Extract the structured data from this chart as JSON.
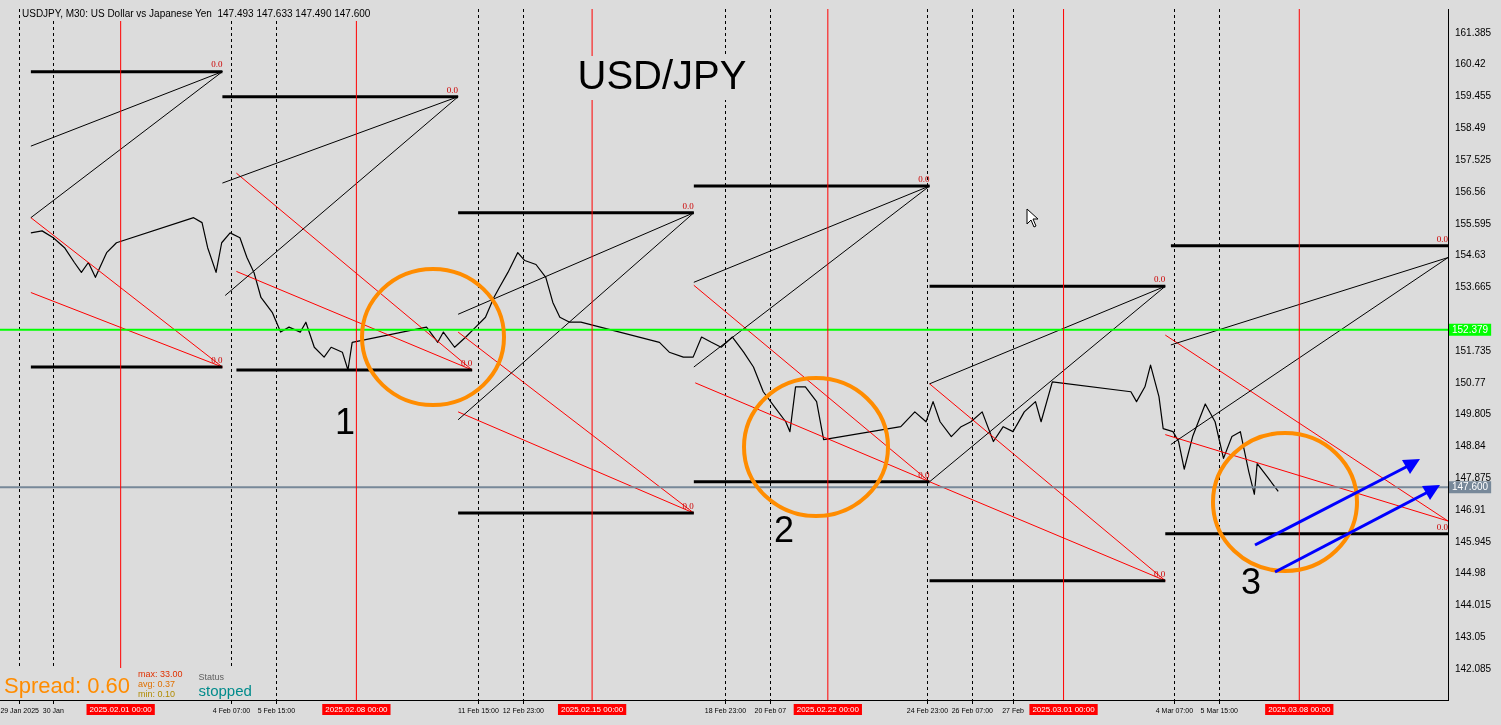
{
  "chart_data": {
    "type": "line",
    "title": "USD/JPY",
    "subtitle": "USDJPY, M30: US Dollar vs Japanese Yen  147.493 147.633 147.490 147.600",
    "x": [
      "2025-01-29T08:00",
      "2025-01-29T16:00",
      "2025-01-30T00:00",
      "2025-01-30T08:00",
      "2025-01-30T15:00",
      "2025-01-30T20:00",
      "2025-01-31T01:00",
      "2025-01-31T06:00",
      "2025-01-31T14:00",
      "2025-01-31T21:00",
      "2025-02-03T04:00",
      "2025-02-03T10:00",
      "2025-02-03T14:00",
      "2025-02-03T20:00",
      "2025-02-04T00:00",
      "2025-02-04T06:00",
      "2025-02-04T13:00",
      "2025-02-04T18:00",
      "2025-02-04T23:00",
      "2025-02-05T04:00",
      "2025-02-05T12:00",
      "2025-02-05T18:00",
      "2025-02-06T00:00",
      "2025-02-06T08:00",
      "2025-02-06T12:00",
      "2025-02-06T18:00",
      "2025-02-07T01:00",
      "2025-02-07T06:00",
      "2025-02-07T14:00",
      "2025-02-07T18:00",
      "2025-02-07T21:00",
      "2025-02-10T02:00",
      "2025-02-10T10:00",
      "2025-02-10T14:00",
      "2025-02-10T22:00",
      "2025-02-11T06:00",
      "2025-02-11T13:00",
      "2025-02-11T20:00",
      "2025-02-12T02:00",
      "2025-02-12T06:00",
      "2025-02-12T12:00",
      "2025-02-12T19:00",
      "2025-02-13T00:00",
      "2025-02-13T08:00",
      "2025-02-13T15:00",
      "2025-02-13T20:00",
      "2025-02-14T01:00",
      "2025-02-14T08:00",
      "2025-02-14T16:00",
      "2025-02-17T00:00",
      "2025-02-17T07:00",
      "2025-02-17T17:00",
      "2025-02-18T00:00",
      "2025-02-18T06:00",
      "2025-02-18T13:00",
      "2025-02-18T20:00",
      "2025-02-19T04:00",
      "2025-02-19T12:00",
      "2025-02-19T19:00",
      "2025-02-20T02:00",
      "2025-02-20T10:00",
      "2025-02-20T18:00",
      "2025-02-20T21:00",
      "2025-02-21T01:00",
      "2025-02-21T08:00",
      "2025-02-21T16:00",
      "2025-02-21T21:00",
      "2025-02-24T04:00",
      "2025-02-24T14:00",
      "2025-02-24T22:00",
      "2025-02-25T03:00",
      "2025-02-25T08:00",
      "2025-02-25T16:00",
      "2025-02-25T23:00",
      "2025-02-26T06:00",
      "2025-02-26T14:00",
      "2025-02-26T22:00",
      "2025-02-27T05:00",
      "2025-02-27T12:00",
      "2025-02-27T20:00",
      "2025-02-28T04:00",
      "2025-02-28T08:00",
      "2025-02-28T16:00",
      "2025-03-03T00:00",
      "2025-03-03T04:00",
      "2025-03-03T10:00",
      "2025-03-03T14:00",
      "2025-03-03T20:00",
      "2025-03-03T23:00",
      "2025-03-04T06:00",
      "2025-03-04T10:00",
      "2025-03-04T14:00",
      "2025-03-04T20:00",
      "2025-03-05T05:00",
      "2025-03-05T12:00",
      "2025-03-05T18:00",
      "2025-03-06T00:00",
      "2025-03-06T06:00",
      "2025-03-06T12:00",
      "2025-03-06T16:00",
      "2025-03-06T18:00",
      "2025-03-07T01:00",
      "2025-03-07T09:00"
    ],
    "values": [
      155.32,
      155.38,
      155.17,
      154.87,
      154.42,
      154.12,
      154.42,
      153.97,
      154.72,
      155.02,
      155.78,
      155.63,
      154.87,
      154.12,
      155.02,
      155.32,
      155.17,
      154.57,
      154.12,
      153.36,
      152.91,
      152.31,
      152.46,
      152.31,
      152.61,
      151.85,
      151.55,
      151.85,
      151.7,
      151.16,
      152.0,
      152.46,
      152.0,
      152.31,
      151.85,
      152.16,
      152.46,
      152.76,
      153.36,
      153.67,
      154.12,
      154.72,
      154.48,
      154.36,
      153.97,
      153.21,
      152.76,
      152.61,
      152.61,
      152.0,
      151.7,
      151.55,
      151.55,
      152.16,
      152.0,
      151.85,
      152.16,
      151.7,
      151.25,
      150.5,
      150.04,
      149.59,
      149.29,
      150.65,
      150.65,
      150.2,
      149.05,
      149.44,
      149.89,
      149.59,
      150.2,
      149.59,
      149.14,
      149.44,
      149.59,
      149.89,
      148.99,
      149.44,
      149.29,
      149.89,
      150.2,
      149.59,
      150.8,
      150.5,
      150.2,
      150.65,
      151.31,
      150.35,
      149.38,
      149.29,
      148.99,
      148.15,
      149.14,
      150.13,
      149.59,
      148.48,
      149.14,
      149.29,
      148.08,
      147.39,
      148.32,
      147.93,
      147.48
    ],
    "color": "#000000",
    "marker": "none",
    "series": [
      {
        "color": "#000000",
        "x": [
          "2025-01-29T08:00",
          "2025-02-04T00:30"
        ],
        "values": [
          160.21,
          160.21
        ]
      },
      {
        "color": "#000000",
        "x": [
          "2025-02-04T00:30",
          "2025-02-11T00:30"
        ],
        "values": [
          159.45,
          159.45
        ]
      },
      {
        "color": "#000000",
        "x": [
          "2025-01-29T08:00",
          "2025-02-04T00:30"
        ],
        "values": [
          151.25,
          151.25
        ]
      },
      {
        "color": "#000000",
        "x": [
          "2025-02-04T10:30",
          "2025-02-11T10:30"
        ],
        "values": [
          151.16,
          151.16
        ]
      },
      {
        "color": "#000000",
        "x": [
          "2025-02-11T00:30",
          "2025-02-18T00:30"
        ],
        "values": [
          155.93,
          155.93
        ]
      },
      {
        "color": "#000000",
        "x": [
          "2025-02-11T00:30",
          "2025-02-18T00:30"
        ],
        "values": [
          146.82,
          146.82
        ]
      },
      {
        "color": "#000000",
        "x": [
          "2025-02-18T00:30",
          "2025-02-25T00:30"
        ],
        "values": [
          156.74,
          156.74
        ]
      },
      {
        "color": "#000000",
        "x": [
          "2025-02-18T00:30",
          "2025-02-25T00:30"
        ],
        "values": [
          147.77,
          147.77
        ]
      },
      {
        "color": "#000000",
        "x": [
          "2025-02-25T00:30",
          "2025-03-04T00:30"
        ],
        "values": [
          153.7,
          153.7
        ]
      },
      {
        "color": "#000000",
        "x": [
          "2025-02-25T00:30",
          "2025-03-04T00:30"
        ],
        "values": [
          144.77,
          144.77
        ]
      },
      {
        "color": "#000000",
        "x": [
          "2025-03-04T04:30",
          "2025-03-12T10:00"
        ],
        "values": [
          154.93,
          154.93
        ]
      },
      {
        "color": "#000000",
        "x": [
          "2025-03-04T00:30",
          "2025-03-12T10:00"
        ],
        "values": [
          146.19,
          146.19
        ]
      },
      {
        "color": "#000000",
        "x": [
          "2025-01-29T08:00",
          "2025-02-04T00:30",
          "2025-01-29T08:00"
        ],
        "values": [
          157.95,
          160.21,
          155.78
        ]
      },
      {
        "color": "#ff0000",
        "x": [
          "2025-01-29T08:00",
          "2025-02-04T00:30",
          "2025-01-29T08:00"
        ],
        "values": [
          155.78,
          151.25,
          153.51
        ]
      },
      {
        "color": "#000000",
        "x": [
          "2025-02-04T00:30",
          "2025-02-11T00:30",
          "2025-02-04T02:30"
        ],
        "values": [
          156.83,
          159.45,
          153.42
        ]
      },
      {
        "color": "#ff0000",
        "x": [
          "2025-02-04T10:30",
          "2025-02-11T10:30",
          "2025-02-04T10:30"
        ],
        "values": [
          157.13,
          151.16,
          154.15
        ]
      },
      {
        "color": "#000000",
        "x": [
          "2025-02-11T00:30",
          "2025-02-18T00:30",
          "2025-02-11T00:30"
        ],
        "values": [
          152.85,
          155.93,
          149.65
        ]
      },
      {
        "color": "#ff0000",
        "x": [
          "2025-02-11T00:30",
          "2025-02-18T00:30",
          "2025-02-11T00:30"
        ],
        "values": [
          152.31,
          146.82,
          149.89
        ]
      },
      {
        "color": "#000000",
        "x": [
          "2025-02-18T00:30",
          "2025-02-25T00:30",
          "2025-02-18T00:30"
        ],
        "values": [
          153.82,
          156.74,
          151.25
        ]
      },
      {
        "color": "#ff0000",
        "x": [
          "2025-02-18T00:30",
          "2025-02-25T00:30",
          "2025-02-18T01:30"
        ],
        "values": [
          153.73,
          147.77,
          150.77
        ]
      },
      {
        "color": "#000000",
        "x": [
          "2025-02-25T00:30",
          "2025-03-04T00:30",
          "2025-02-25T00:30"
        ],
        "values": [
          150.74,
          153.7,
          147.77
        ]
      },
      {
        "color": "#ff0000",
        "x": [
          "2025-02-25T00:30",
          "2025-03-04T00:30",
          "2025-02-25T00:30"
        ],
        "values": [
          150.74,
          144.77,
          147.77
        ]
      },
      {
        "color": "#000000",
        "x": [
          "2025-03-04T04:30",
          "2025-03-12T10:00",
          "2025-03-04T04:30"
        ],
        "values": [
          151.92,
          154.57,
          148.9
        ]
      },
      {
        "color": "#ff0000",
        "x": [
          "2025-03-04T00:30",
          "2025-03-12T10:00",
          "2025-03-04T00:30"
        ],
        "values": [
          152.22,
          146.58,
          149.2
        ]
      }
    ],
    "xlim": [
      "2025-01-28T10:00",
      "2025-03-12T10:00"
    ],
    "xticks": [
      {
        "value": "2025-01-29T00:00",
        "label": "29 Jan 2025"
      },
      {
        "value": "2025-01-30T00:00",
        "label": "30 Jan"
      },
      {
        "value": "2025-02-04T07:00",
        "label": "4 Feb 07:00"
      },
      {
        "value": "2025-02-05T15:00",
        "label": "5 Feb 15:00"
      },
      {
        "value": "2025-02-11T15:00",
        "label": "11 Feb 15:00"
      },
      {
        "value": "2025-02-12T23:00",
        "label": "12 Feb 23:00"
      },
      {
        "value": "2025-02-18T23:00",
        "label": "18 Feb 23:00"
      },
      {
        "value": "2025-02-20T07:00",
        "label": "20 Feb 07"
      },
      {
        "value": "2025-02-24T23:00",
        "label": "24 Feb 23:00"
      },
      {
        "value": "2025-02-26T07:00",
        "label": "26 Feb 07:00"
      },
      {
        "value": "2025-02-27T12:00",
        "label": "27 Feb"
      },
      {
        "value": "2025-03-04T07:00",
        "label": "4 Mar 07:00"
      },
      {
        "value": "2025-03-05T15:00",
        "label": "5 Mar 15:00"
      }
    ],
    "ylim": [
      141.15,
      162.11
    ],
    "yticks": [
      161.385,
      160.42,
      159.455,
      158.49,
      157.525,
      156.56,
      155.595,
      154.63,
      153.665,
      151.735,
      150.77,
      149.805,
      148.84,
      147.875,
      146.91,
      145.945,
      144.98,
      144.015,
      143.05,
      142.085
    ],
    "grid": "x",
    "ref_lines": [
      {
        "axis": "y",
        "value": 152.379,
        "label": "152.379",
        "color": "#00ff00"
      },
      {
        "axis": "y",
        "value": 147.6,
        "label": "147.600",
        "color": "#778899"
      },
      {
        "axis": "x",
        "value": "2025-02-01T00:00",
        "label": "2025.02.01 00:00",
        "color": "#ff0000"
      },
      {
        "axis": "x",
        "value": "2025-02-08T00:00",
        "label": "2025.02.08 00:00",
        "color": "#ff0000"
      },
      {
        "axis": "x",
        "value": "2025-02-15T00:00",
        "label": "2025.02.15 00:00",
        "color": "#ff0000"
      },
      {
        "axis": "x",
        "value": "2025-02-22T00:00",
        "label": "2025.02.22 00:00",
        "color": "#ff0000"
      },
      {
        "axis": "x",
        "value": "2025-03-01T00:00",
        "label": "2025.03.01 00:00",
        "color": "#ff0000"
      },
      {
        "axis": "x",
        "value": "2025-03-08T00:00",
        "label": "2025.03.08 00:00",
        "color": "#ff0000"
      }
    ],
    "annotations": [
      {
        "text": "0.0",
        "x": "2025-02-04T00:30",
        "y": 160.21
      },
      {
        "text": "0.0",
        "x": "2025-02-11T00:30",
        "y": 159.45
      },
      {
        "text": "0.0",
        "x": "2025-02-04T00:30",
        "y": 151.25
      },
      {
        "text": "0.0",
        "x": "2025-02-11T10:30",
        "y": 151.16
      },
      {
        "text": "0.0",
        "x": "2025-02-18T00:30",
        "y": 155.93
      },
      {
        "text": "0.0",
        "x": "2025-02-18T00:30",
        "y": 146.82
      },
      {
        "text": "0.0",
        "x": "2025-02-25T00:30",
        "y": 156.74
      },
      {
        "text": "0.0",
        "x": "2025-02-25T00:30",
        "y": 147.77
      },
      {
        "text": "0.0",
        "x": "2025-03-04T00:30",
        "y": 153.7
      },
      {
        "text": "0.0",
        "x": "2025-03-04T00:30",
        "y": 144.77
      },
      {
        "text": "0.0",
        "x": "2025-03-12T10:00",
        "y": 154.93
      },
      {
        "text": "0.0",
        "x": "2025-03-12T10:00",
        "y": 146.19
      },
      "1",
      "2",
      "3",
      "Spread: 0.60",
      "max: 33.00",
      "avg: 0.37",
      "min: 0.10",
      "Status",
      "stopped"
    ]
  }
}
